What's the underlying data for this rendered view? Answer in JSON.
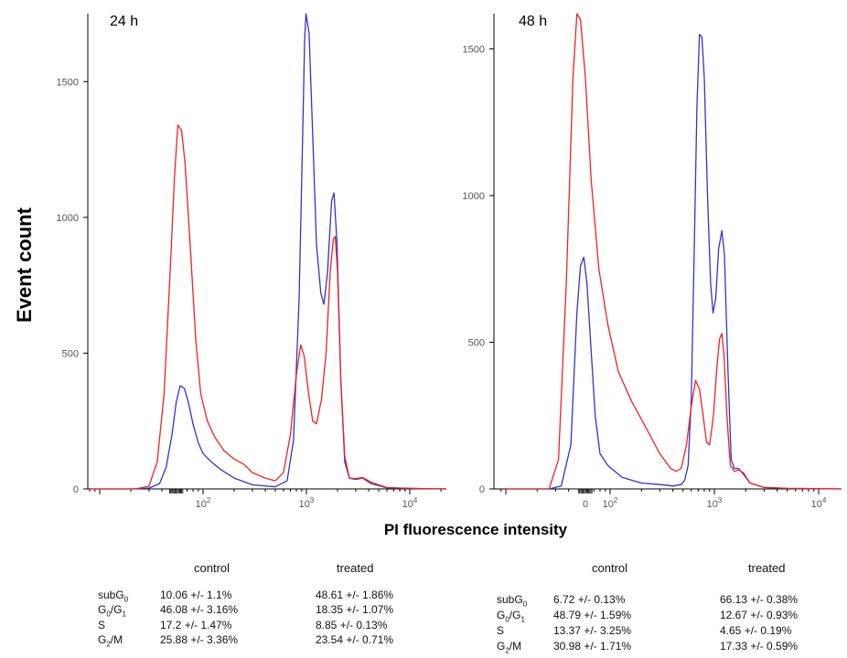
{
  "chart_data": {
    "type": "line",
    "ylabel": "Event count",
    "xlabel": "PI fluorescence intensity",
    "x_scale": "log",
    "colors": {
      "control": "#3333cc",
      "treated": "#ee2222"
    },
    "panels": [
      {
        "title": "24 h",
        "ylim": [
          0,
          1750
        ],
        "y_ticks": [
          0,
          500,
          1000,
          1500
        ],
        "x_ticks": [
          {
            "value": 100,
            "base": "10",
            "exp": "2"
          },
          {
            "value": 1000,
            "base": "10",
            "exp": "3"
          },
          {
            "value": 10000,
            "base": "10",
            "exp": "4"
          }
        ],
        "series": [
          {
            "key": "control",
            "points": [
              [
                8,
                0
              ],
              [
                20,
                0
              ],
              [
                30,
                3
              ],
              [
                38,
                20
              ],
              [
                44,
                80
              ],
              [
                50,
                200
              ],
              [
                55,
                320
              ],
              [
                60,
                380
              ],
              [
                66,
                370
              ],
              [
                72,
                320
              ],
              [
                80,
                240
              ],
              [
                90,
                170
              ],
              [
                100,
                130
              ],
              [
                120,
                100
              ],
              [
                150,
                70
              ],
              [
                200,
                40
              ],
              [
                300,
                15
              ],
              [
                500,
                8
              ],
              [
                650,
                30
              ],
              [
                750,
                180
              ],
              [
                850,
                700
              ],
              [
                920,
                1300
              ],
              [
                960,
                1650
              ],
              [
                990,
                1750
              ],
              [
                1060,
                1680
              ],
              [
                1150,
                1300
              ],
              [
                1250,
                900
              ],
              [
                1380,
                720
              ],
              [
                1480,
                680
              ],
              [
                1600,
                800
              ],
              [
                1750,
                1060
              ],
              [
                1850,
                1090
              ],
              [
                1980,
                900
              ],
              [
                2150,
                400
              ],
              [
                2350,
                100
              ],
              [
                2600,
                40
              ],
              [
                3000,
                35
              ],
              [
                3500,
                40
              ],
              [
                4200,
                20
              ],
              [
                6000,
                4
              ],
              [
                10000,
                2
              ],
              [
                30000,
                0
              ]
            ]
          },
          {
            "key": "treated",
            "points": [
              [
                8,
                0
              ],
              [
                22,
                0
              ],
              [
                30,
                10
              ],
              [
                36,
                100
              ],
              [
                42,
                350
              ],
              [
                48,
                800
              ],
              [
                53,
                1150
              ],
              [
                57,
                1340
              ],
              [
                62,
                1320
              ],
              [
                67,
                1200
              ],
              [
                75,
                900
              ],
              [
                85,
                550
              ],
              [
                95,
                350
              ],
              [
                110,
                250
              ],
              [
                130,
                190
              ],
              [
                160,
                140
              ],
              [
                200,
                110
              ],
              [
                250,
                90
              ],
              [
                300,
                60
              ],
              [
                400,
                40
              ],
              [
                500,
                30
              ],
              [
                600,
                60
              ],
              [
                700,
                200
              ],
              [
                800,
                420
              ],
              [
                880,
                530
              ],
              [
                950,
                490
              ],
              [
                1050,
                350
              ],
              [
                1150,
                250
              ],
              [
                1250,
                240
              ],
              [
                1400,
                330
              ],
              [
                1550,
                500
              ],
              [
                1700,
                800
              ],
              [
                1820,
                920
              ],
              [
                1900,
                930
              ],
              [
                2000,
                800
              ],
              [
                2150,
                400
              ],
              [
                2350,
                120
              ],
              [
                2600,
                40
              ],
              [
                3000,
                38
              ],
              [
                3500,
                42
              ],
              [
                4200,
                25
              ],
              [
                6000,
                5
              ],
              [
                10000,
                2
              ],
              [
                30000,
                0
              ]
            ]
          }
        ]
      },
      {
        "title": "48 h",
        "ylim": [
          0,
          1620
        ],
        "y_ticks": [
          0,
          500,
          1000,
          1500
        ],
        "x_ticks": [
          {
            "value": 0,
            "label": "0"
          },
          {
            "value": 100,
            "base": "10",
            "exp": "2"
          },
          {
            "value": 1000,
            "base": "10",
            "exp": "3"
          },
          {
            "value": 10000,
            "base": "10",
            "exp": "4"
          }
        ],
        "series": [
          {
            "key": "control",
            "points": [
              [
                10,
                0
              ],
              [
                26,
                0
              ],
              [
                34,
                10
              ],
              [
                42,
                150
              ],
              [
                48,
                600
              ],
              [
                52,
                760
              ],
              [
                56,
                790
              ],
              [
                60,
                700
              ],
              [
                65,
                500
              ],
              [
                72,
                250
              ],
              [
                80,
                120
              ],
              [
                95,
                80
              ],
              [
                130,
                40
              ],
              [
                200,
                20
              ],
              [
                300,
                15
              ],
              [
                400,
                10
              ],
              [
                480,
                15
              ],
              [
                520,
                30
              ],
              [
                560,
                80
              ],
              [
                600,
                300
              ],
              [
                640,
                800
              ],
              [
                680,
                1300
              ],
              [
                720,
                1550
              ],
              [
                760,
                1540
              ],
              [
                800,
                1400
              ],
              [
                860,
                1000
              ],
              [
                920,
                700
              ],
              [
                970,
                600
              ],
              [
                1030,
                650
              ],
              [
                1100,
                820
              ],
              [
                1180,
                880
              ],
              [
                1250,
                800
              ],
              [
                1350,
                400
              ],
              [
                1450,
                100
              ],
              [
                1550,
                70
              ],
              [
                1700,
                70
              ],
              [
                1900,
                50
              ],
              [
                2200,
                20
              ],
              [
                3000,
                5
              ],
              [
                5000,
                2
              ],
              [
                30000,
                0
              ]
            ]
          },
          {
            "key": "treated",
            "points": [
              [
                10,
                0
              ],
              [
                26,
                0
              ],
              [
                32,
                100
              ],
              [
                38,
                700
              ],
              [
                44,
                1400
              ],
              [
                48,
                1620
              ],
              [
                52,
                1600
              ],
              [
                58,
                1400
              ],
              [
                66,
                1050
              ],
              [
                78,
                750
              ],
              [
                95,
                560
              ],
              [
                120,
                400
              ],
              [
                160,
                300
              ],
              [
                220,
                210
              ],
              [
                300,
                120
              ],
              [
                380,
                70
              ],
              [
                430,
                60
              ],
              [
                480,
                70
              ],
              [
                540,
                150
              ],
              [
                600,
                280
              ],
              [
                660,
                370
              ],
              [
                720,
                340
              ],
              [
                780,
                250
              ],
              [
                840,
                160
              ],
              [
                900,
                150
              ],
              [
                980,
                250
              ],
              [
                1060,
                420
              ],
              [
                1120,
                510
              ],
              [
                1180,
                530
              ],
              [
                1240,
                450
              ],
              [
                1320,
                250
              ],
              [
                1420,
                80
              ],
              [
                1550,
                60
              ],
              [
                1700,
                65
              ],
              [
                1900,
                55
              ],
              [
                2200,
                20
              ],
              [
                3000,
                5
              ],
              [
                5000,
                2
              ],
              [
                30000,
                0
              ]
            ]
          }
        ]
      }
    ]
  },
  "tables": [
    {
      "headers": {
        "control": "control",
        "treated": "treated"
      },
      "rows": [
        {
          "phase_base": "subG",
          "phase_sub": "0",
          "phase_mid": "",
          "phase_base2": "",
          "phase_sub2": "",
          "control": "10.06 +/- 1.1%",
          "treated": "48.61 +/- 1.86%"
        },
        {
          "phase_base": "G",
          "phase_sub": "0",
          "phase_mid": "/G",
          "phase_base2": "",
          "phase_sub2": "1",
          "control": "46.08 +/- 3.16%",
          "treated": "18.35 +/- 1.07%"
        },
        {
          "phase_base": "S",
          "phase_sub": "",
          "phase_mid": "",
          "phase_base2": "",
          "phase_sub2": "",
          "control": "17.2 +/- 1.47%",
          "treated": "8.85 +/- 0.13%"
        },
        {
          "phase_base": "G",
          "phase_sub": "2",
          "phase_mid": "/M",
          "phase_base2": "",
          "phase_sub2": "",
          "control": "25.88 +/- 3.36%",
          "treated": "23.54 +/- 0.71%"
        }
      ]
    },
    {
      "headers": {
        "control": "control",
        "treated": "treated"
      },
      "rows": [
        {
          "phase_base": "subG",
          "phase_sub": "0",
          "phase_mid": "",
          "phase_base2": "",
          "phase_sub2": "",
          "control": "6.72 +/- 0.13%",
          "treated": "66.13 +/- 0.38%"
        },
        {
          "phase_base": "G",
          "phase_sub": "0",
          "phase_mid": "/G",
          "phase_base2": "",
          "phase_sub2": "1",
          "control": "48.79 +/- 1.59%",
          "treated": "12.67 +/- 0.93%"
        },
        {
          "phase_base": "S",
          "phase_sub": "",
          "phase_mid": "",
          "phase_base2": "",
          "phase_sub2": "",
          "control": "13.37 +/- 3.25%",
          "treated": "4.65 +/- 0.19%"
        },
        {
          "phase_base": "G",
          "phase_sub": "2",
          "phase_mid": "/M",
          "phase_base2": "",
          "phase_sub2": "",
          "control": "30.98 +/- 1.71%",
          "treated": "17.33 +/- 0.59%"
        }
      ]
    }
  ]
}
